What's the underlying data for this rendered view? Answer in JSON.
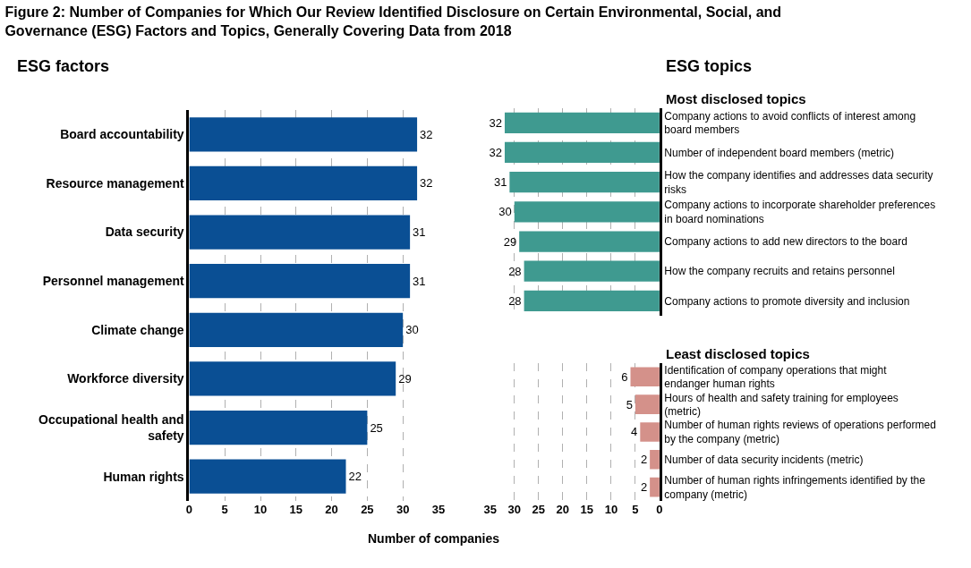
{
  "chart_data": [
    {
      "type": "bar",
      "orientation": "horizontal",
      "title": "Figure 2: Number of Companies for Which Our Review Identified Disclosure on Certain Environmental, Social, and Governance (ESG) Factors and Topics, Generally Covering Data from 2018",
      "subtitle": "ESG factors",
      "xlabel": "Number of companies",
      "categories": [
        "Board accountability",
        "Resource management",
        "Data security",
        "Personnel management",
        "Climate change",
        "Workforce diversity",
        "Occupational health and safety",
        "Human rights"
      ],
      "values": [
        32,
        32,
        31,
        31,
        30,
        29,
        25,
        22
      ],
      "color": "#0a4f94",
      "xlim": [
        0,
        35
      ],
      "xticks": [
        0,
        5,
        10,
        15,
        20,
        25,
        30,
        35
      ],
      "grid": "x",
      "data_labels": true
    },
    {
      "type": "bar",
      "orientation": "horizontal",
      "title": "ESG topics",
      "subtitle": "Most disclosed topics",
      "categories": [
        "Company actions to avoid conflicts of interest among board members",
        "Number of independent board members (metric)",
        "How the company identifies and addresses data security risks",
        "Company actions to incorporate shareholder preferences in board nominations",
        "Company actions to add new directors to the board",
        "How the company recruits and retains personnel",
        "Company actions to promote diversity and inclusion"
      ],
      "values": [
        32,
        32,
        31,
        30,
        29,
        28,
        28
      ],
      "color": "#3f9a90",
      "xlim": [
        35,
        0
      ],
      "xticks": [
        35,
        30,
        25,
        20,
        15,
        10,
        5,
        0
      ],
      "grid": "x",
      "data_labels": true,
      "tick_labels": "y"
    },
    {
      "type": "bar",
      "orientation": "horizontal",
      "subtitle": "Least disclosed topics",
      "categories": [
        "Identification of company operations that might endanger human rights",
        "Hours of health and safety training for employees (metric)",
        "Number of human rights reviews of operations performed by the company (metric)",
        "Number of data security incidents (metric)",
        "Number of human rights infringements identified by the company (metric)"
      ],
      "values": [
        6,
        5,
        4,
        2,
        2
      ],
      "color": "#d4918a",
      "xlim": [
        35,
        0
      ],
      "xticks": [
        35,
        30,
        25,
        20,
        15,
        10,
        5,
        0
      ],
      "grid": "x",
      "data_labels": true
    }
  ]
}
